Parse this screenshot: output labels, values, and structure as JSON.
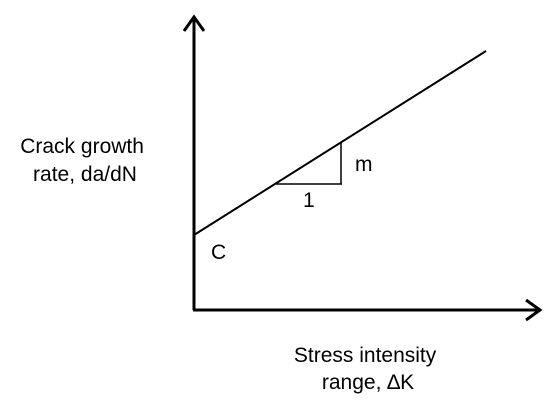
{
  "diagram": {
    "y_axis_label": [
      "Crack growth",
      "rate, da/dN"
    ],
    "x_axis_label": [
      "Stress intensity",
      "range, ∆K"
    ],
    "intercept_label": "C",
    "slope_label": "m",
    "run_label": "1",
    "colors": {
      "ink": "#000000",
      "background": "#ffffff"
    }
  }
}
